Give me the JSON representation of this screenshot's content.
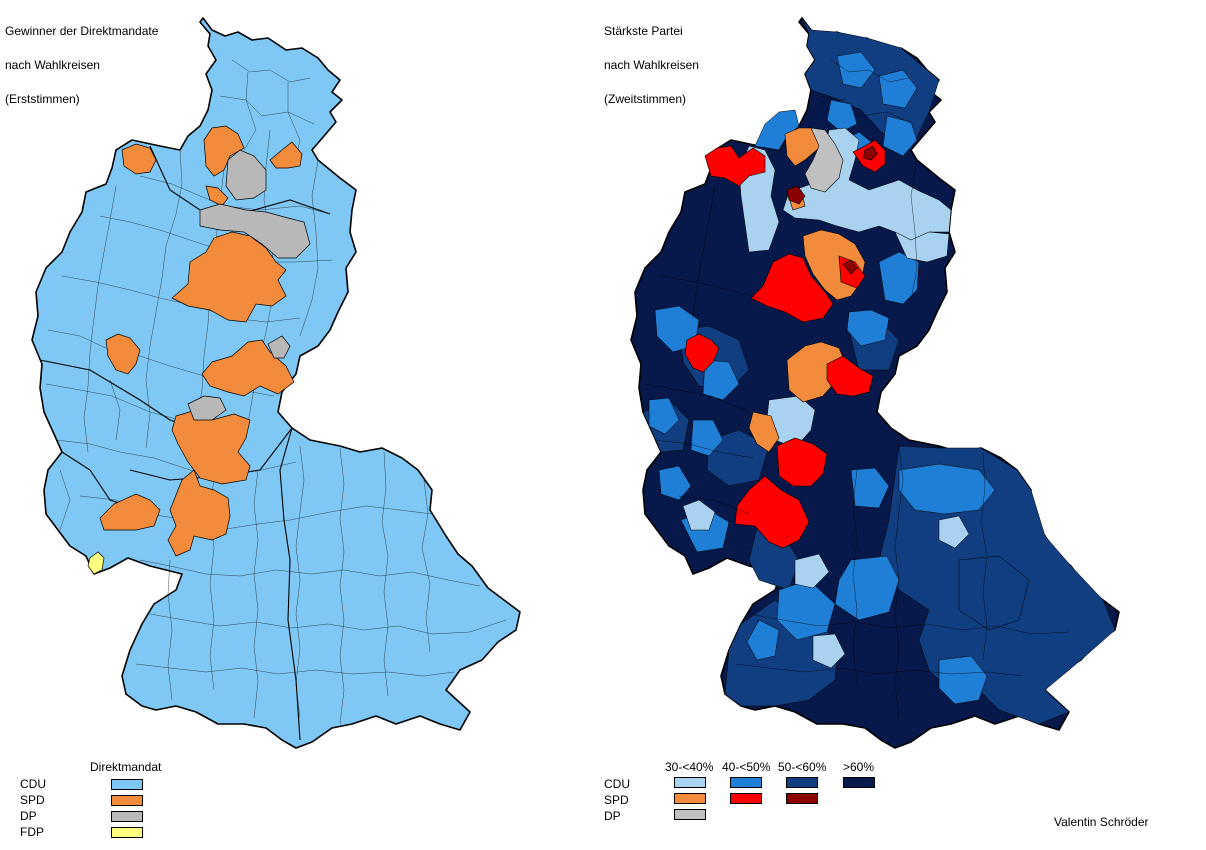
{
  "left_map": {
    "title_lines": [
      "Gewinner der Direktmandate",
      "nach Wahlkreisen",
      "(Erststimmen)"
    ],
    "legend": {
      "header": "Direktmandat",
      "rows": [
        {
          "party": "CDU",
          "color": "#7fc8f5"
        },
        {
          "party": "SPD",
          "color": "#f28c3c"
        },
        {
          "party": "DP",
          "color": "#b8b8b8"
        },
        {
          "party": "FDP",
          "color": "#ffff80"
        }
      ]
    }
  },
  "right_map": {
    "title_lines": [
      "Stärkste Partei",
      "nach Wahlkreisen",
      "(Zweitstimmen)"
    ],
    "legend": {
      "headers": [
        "30-<40%",
        "40-<50%",
        "50-<60%",
        ">60%"
      ],
      "rows": [
        {
          "party": "CDU",
          "colors": [
            "#a9d2f0",
            "#1f7ed6",
            "#103e80",
            "#07184a"
          ]
        },
        {
          "party": "SPD",
          "colors": [
            "#f28c3c",
            "#ff0000",
            "#8b0000",
            null
          ]
        },
        {
          "party": "DP",
          "colors": [
            "#c0c0c0",
            null,
            null,
            null
          ]
        }
      ]
    }
  },
  "credit": "Valentin Schröder",
  "colors": {
    "cdu_light": "#7fc8f5",
    "cdu_30": "#a9d2f0",
    "cdu_40": "#1f7ed6",
    "cdu_50": "#103e80",
    "cdu_60": "#07184a",
    "spd_30": "#f28c3c",
    "spd_40": "#ff0000",
    "spd_50": "#8b0000",
    "dp": "#b8b8b8",
    "fdp": "#ffff80"
  }
}
